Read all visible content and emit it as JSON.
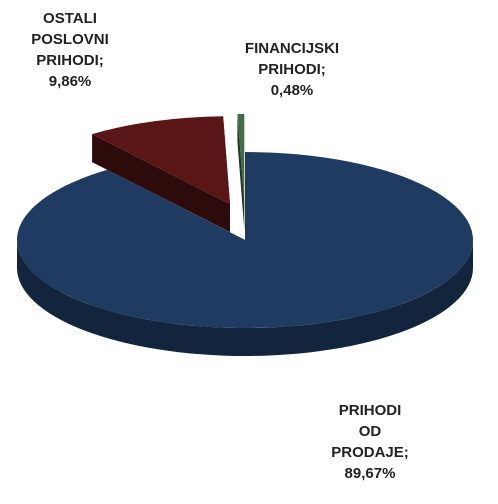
{
  "chart_data": {
    "type": "pie",
    "three_d": true,
    "categories": [
      "PRIHODI OD PRODAJE;",
      "OSTALI POSLOVNI PRIHODI;",
      "FINANCIJSKI PRIHODI;"
    ],
    "values": [
      89.67,
      9.86,
      0.48
    ],
    "value_labels": [
      "89,67%",
      "9,86%",
      "0,48%"
    ],
    "colors": [
      "#1f3b61",
      "#5a1616",
      "#3f6e46"
    ],
    "exploded": [
      false,
      true,
      true
    ]
  }
}
